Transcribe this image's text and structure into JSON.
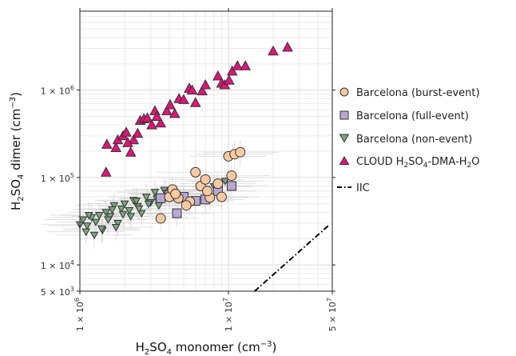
{
  "chart_data": {
    "type": "scatter",
    "x_scale": "log",
    "y_scale": "log",
    "xlim": [
      1000000,
      50000000
    ],
    "ylim": [
      5000,
      8000000
    ],
    "grid": true,
    "legend_position": "right",
    "xlabel": {
      "base": "H",
      "sub1": "2",
      "mid": "SO",
      "sub2": "4",
      "tail": " monomer (cm",
      "sup": "−3",
      "end": ")"
    },
    "ylabel": {
      "base": "H",
      "sub1": "2",
      "mid": "SO",
      "sub2": "4",
      "tail": " dimer (cm",
      "sup": "−3",
      "end": ")"
    },
    "x_ticks": [
      {
        "value": 1000000,
        "mant": "1 × 10",
        "exp": "6"
      },
      {
        "value": 10000000,
        "mant": "1 × 10",
        "exp": "7"
      },
      {
        "value": 50000000,
        "mant": "5 × 10",
        "exp": "7"
      }
    ],
    "y_ticks": [
      {
        "value": 5000,
        "mant": "5 × 10",
        "exp": "3"
      },
      {
        "value": 10000,
        "mant": "1 × 10",
        "exp": "4"
      },
      {
        "value": 100000,
        "mant": "1 × 10",
        "exp": "5"
      },
      {
        "value": 1000000,
        "mant": "1 × 10",
        "exp": "6"
      }
    ],
    "series": [
      {
        "name": "Barcelona (burst-event)",
        "marker": "circle",
        "color": "#f9c9a0",
        "x": [
          3500000,
          4000000,
          4200000,
          4600000,
          5500000,
          6000000,
          6500000,
          7000000,
          7500000,
          8500000,
          9000000,
          10000000,
          10500000,
          11000000,
          12000000,
          4400000,
          5200000,
          7200000
        ],
        "y": [
          34000,
          60000,
          73000,
          58000,
          53000,
          115000,
          80000,
          95000,
          59000,
          85000,
          60000,
          175000,
          105000,
          185000,
          195000,
          65000,
          48000,
          70000
        ]
      },
      {
        "name": "Barcelona (full-event)",
        "marker": "square",
        "color": "#b7a8d3",
        "x": [
          3500000,
          4000000,
          4500000,
          5000000,
          6000000,
          7000000,
          8500000,
          10500000
        ],
        "y": [
          58000,
          63000,
          39000,
          60000,
          54000,
          56000,
          70000,
          80000
        ]
      },
      {
        "name": "Barcelona (non-event)",
        "marker": "triangle-down",
        "color": "#7aa67e",
        "x": [
          1000000,
          1050000,
          1120000,
          1200000,
          1280000,
          1350000,
          1420000,
          1500000,
          1600000,
          1700000,
          1800000,
          1900000,
          2000000,
          2150000,
          2300000,
          2450000,
          2600000,
          2800000,
          3000000,
          3200000,
          3400000,
          3700000,
          4000000,
          1100000,
          1250000,
          1400000,
          1550000,
          1750000,
          1950000,
          2200000,
          2500000,
          2900000,
          3300000,
          3800000,
          1150000,
          1650000,
          2400000,
          8000000,
          9500000
        ],
        "y": [
          29000,
          33000,
          28000,
          35000,
          31000,
          37000,
          25000,
          40000,
          36000,
          48000,
          30000,
          44000,
          50000,
          42000,
          55000,
          47000,
          39000,
          60000,
          52000,
          68000,
          48000,
          72000,
          65000,
          24000,
          22000,
          26000,
          33000,
          27000,
          38000,
          36000,
          44000,
          50000,
          57000,
          66000,
          37000,
          43000,
          54000,
          79000,
          91000
        ]
      },
      {
        "name": "CLOUD H₂SO₄-DMA-H₂O",
        "marker": "triangle-up",
        "color": "#e0147a",
        "x": [
          1500000,
          1520000,
          1750000,
          1800000,
          1950000,
          2050000,
          2200000,
          2300000,
          2450000,
          2550000,
          2700000,
          2850000,
          3050000,
          3200000,
          3500000,
          3850000,
          4050000,
          4350000,
          4650000,
          5000000,
          5450000,
          5700000,
          6000000,
          6650000,
          7000000,
          8500000,
          9000000,
          9450000,
          10100000,
          10600000,
          11500000,
          13000000,
          20000000,
          25000000,
          2100000,
          3300000
        ],
        "y": [
          115000,
          240000,
          220000,
          270000,
          300000,
          330000,
          195000,
          270000,
          320000,
          450000,
          470000,
          480000,
          400000,
          580000,
          420000,
          580000,
          680000,
          540000,
          800000,
          780000,
          1050000,
          1000000,
          720000,
          980000,
          1150000,
          1450000,
          1200000,
          1150000,
          1300000,
          1650000,
          1900000,
          1900000,
          2800000,
          3100000,
          250000,
          500000
        ]
      }
    ],
    "reference_line": {
      "name": "IIC",
      "style": "dash-dot",
      "color": "#000000",
      "x": [
        15000000,
        48000000
      ],
      "y": [
        5000,
        29000
      ]
    }
  },
  "legend": [
    {
      "label": "Barcelona (burst-event)"
    },
    {
      "label": "Barcelona (full-event)"
    },
    {
      "label": "Barcelona (non-event)"
    },
    {
      "label_base": "CLOUD H",
      "label_sub1": "2",
      "label_mid": "SO",
      "label_sub2": "4",
      "label_tail": "-DMA-H",
      "label_sub3": "2",
      "label_end": "O"
    },
    {
      "label": "IIC"
    }
  ]
}
